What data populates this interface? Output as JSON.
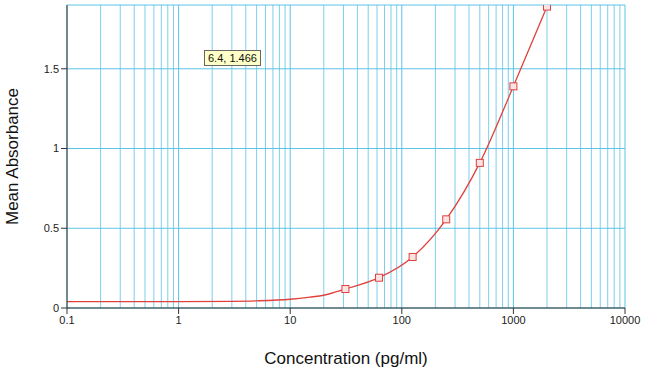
{
  "chart_data": {
    "type": "line",
    "annotation": "6.4, 1.466",
    "x_label": "Concentration (pg/ml)",
    "y_label": "Mean Absorbance",
    "log": "x",
    "grid": true,
    "xlim": [
      0.1,
      10000
    ],
    "xticks": [
      0.1,
      1,
      10,
      100,
      1000,
      10000
    ],
    "ylim": [
      0,
      1.9
    ],
    "yticks": [
      0,
      0.5,
      1,
      1.5
    ],
    "series": [
      {
        "type": "line",
        "color": "#e0413c",
        "line_style": "solid",
        "marker": "none",
        "x": [
          0.1,
          1,
          3,
          5,
          10,
          15,
          20,
          31.25,
          62.5,
          125,
          250,
          500,
          1000,
          2000
        ],
        "values": [
          0.04,
          0.04,
          0.042,
          0.045,
          0.055,
          0.068,
          0.08,
          0.119,
          0.19,
          0.32,
          0.556,
          0.91,
          1.39,
          1.89
        ]
      },
      {
        "type": "scatter",
        "color": "#e0413c",
        "marker": "square",
        "x": [
          31.25,
          62.5,
          125,
          250,
          500,
          1000,
          2000
        ],
        "values": [
          0.119,
          0.19,
          0.32,
          0.556,
          0.91,
          1.39,
          1.89
        ]
      }
    ]
  }
}
